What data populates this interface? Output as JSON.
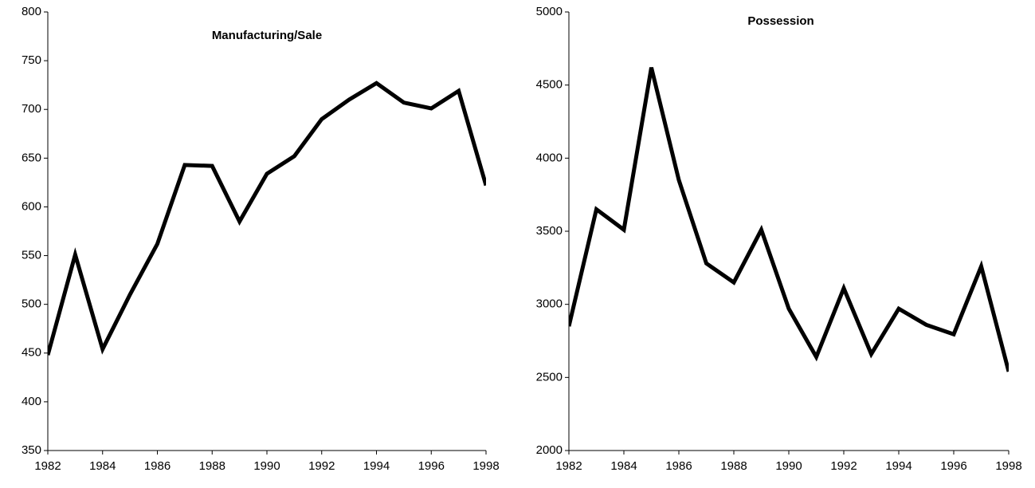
{
  "chart_data": [
    {
      "type": "line",
      "title": "Manufacturing/Sale",
      "x": [
        1982,
        1983,
        1984,
        1985,
        1986,
        1987,
        1988,
        1989,
        1990,
        1991,
        1992,
        1993,
        1994,
        1995,
        1996,
        1997,
        1998
      ],
      "series": [
        {
          "color": "#000000",
          "values": [
            448,
            551,
            454,
            510,
            562,
            643,
            642,
            585,
            634,
            652,
            690,
            710,
            727,
            707,
            701,
            719,
            622
          ]
        }
      ],
      "xlim": [
        1982,
        1998
      ],
      "xticks": [
        1982,
        1984,
        1986,
        1988,
        1990,
        1992,
        1994,
        1996,
        1998
      ],
      "ylim": [
        350,
        800
      ],
      "yticks": [
        350,
        400,
        450,
        500,
        550,
        600,
        650,
        700,
        750,
        800
      ],
      "grid": false
    },
    {
      "type": "line",
      "title": "Possession",
      "x": [
        1982,
        1983,
        1984,
        1985,
        1986,
        1987,
        1988,
        1989,
        1990,
        1991,
        1992,
        1993,
        1994,
        1995,
        1996,
        1997,
        1998
      ],
      "series": [
        {
          "color": "#000000",
          "values": [
            2850,
            3650,
            3510,
            4620,
            3850,
            3280,
            3150,
            3510,
            2970,
            2640,
            3110,
            2660,
            2970,
            2860,
            2795,
            3260,
            2540
          ]
        }
      ],
      "xlim": [
        1982,
        1998
      ],
      "xticks": [
        1982,
        1984,
        1986,
        1988,
        1990,
        1992,
        1994,
        1996,
        1998
      ],
      "ylim": [
        2000,
        5000
      ],
      "yticks": [
        2000,
        2500,
        3000,
        3500,
        4000,
        4500,
        5000
      ],
      "grid": false
    }
  ]
}
